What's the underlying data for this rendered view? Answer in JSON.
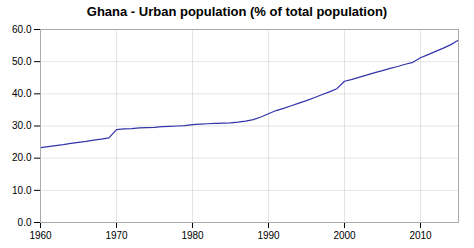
{
  "chart_data": {
    "type": "line",
    "title": "Ghana - Urban population (% of total population)",
    "x": [
      1960,
      1961,
      1962,
      1963,
      1964,
      1965,
      1966,
      1967,
      1968,
      1969,
      1970,
      1971,
      1972,
      1973,
      1974,
      1975,
      1976,
      1977,
      1978,
      1979,
      1980,
      1981,
      1982,
      1983,
      1984,
      1985,
      1986,
      1987,
      1988,
      1989,
      1990,
      1991,
      1992,
      1993,
      1994,
      1995,
      1996,
      1997,
      1998,
      1999,
      2000,
      2001,
      2002,
      2003,
      2004,
      2005,
      2006,
      2007,
      2008,
      2009,
      2010,
      2011,
      2012,
      2013,
      2014,
      2015
    ],
    "values": [
      23.3,
      23.6,
      23.9,
      24.2,
      24.6,
      24.9,
      25.2,
      25.6,
      25.9,
      26.3,
      28.9,
      29.1,
      29.2,
      29.4,
      29.5,
      29.6,
      29.8,
      29.9,
      30.0,
      30.1,
      30.4,
      30.6,
      30.7,
      30.8,
      30.9,
      31.0,
      31.2,
      31.5,
      32.0,
      32.8,
      33.8,
      34.8,
      35.5,
      36.3,
      37.1,
      37.9,
      38.8,
      39.7,
      40.6,
      41.6,
      43.9,
      44.5,
      45.2,
      45.9,
      46.6,
      47.2,
      47.9,
      48.5,
      49.2,
      49.8,
      51.2,
      52.2,
      53.2,
      54.2,
      55.3,
      56.7
    ],
    "color": "#3333aa",
    "xlim": [
      1960,
      2015
    ],
    "ylim": [
      0.0,
      60.0
    ],
    "xticks": [
      1960,
      1970,
      1980,
      1990,
      2000,
      2010
    ],
    "yticks": [
      {
        "value": 0,
        "label": "0.0"
      },
      {
        "value": 10,
        "label": "10.0"
      },
      {
        "value": 20,
        "label": "20.0"
      },
      {
        "value": 30,
        "label": "30.0"
      },
      {
        "value": 40,
        "label": "40.0"
      },
      {
        "value": 50,
        "label": "50.0"
      },
      {
        "value": 60,
        "label": "60.0"
      }
    ],
    "grid": true
  }
}
